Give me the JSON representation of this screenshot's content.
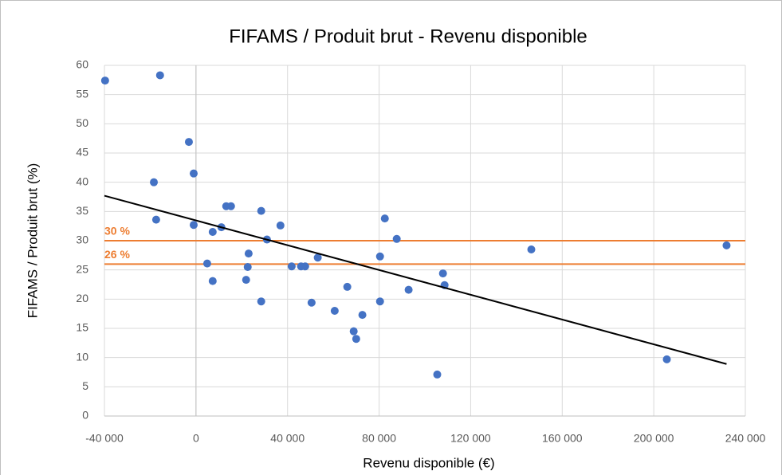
{
  "chart_data": {
    "type": "scatter",
    "title": "FIFAMS / Produit brut - Revenu disponible",
    "x_label": "Revenu disponible (€)",
    "y_label": "FIFAMS / Produit brut (%)",
    "color": "#4472c4",
    "x": [
      -39700,
      -15700,
      -3100,
      -1000,
      -18400,
      -17400,
      -1000,
      7300,
      11100,
      13200,
      15300,
      28500,
      36900,
      31000,
      23000,
      4900,
      22600,
      7300,
      21900,
      28500,
      41800,
      45900,
      47700,
      53200,
      50500,
      66100,
      60600,
      68900,
      70000,
      72700,
      80400,
      80400,
      82500,
      87700,
      92900,
      107900,
      108600,
      105400,
      146500,
      205700,
      231800
    ],
    "y": [
      57.4,
      58.3,
      46.9,
      41.5,
      40.0,
      33.6,
      32.7,
      31.5,
      32.3,
      35.9,
      35.9,
      35.1,
      32.6,
      30.2,
      27.8,
      26.1,
      25.5,
      23.1,
      23.3,
      19.6,
      25.6,
      25.6,
      25.6,
      27.1,
      19.4,
      22.1,
      18.0,
      14.5,
      13.2,
      17.3,
      27.3,
      19.6,
      33.8,
      30.3,
      21.6,
      24.4,
      22.4,
      7.1,
      28.5,
      9.7,
      29.2
    ],
    "trendline": {
      "x": [
        -40000,
        231800
      ],
      "y": [
        37.7,
        8.9
      ],
      "color": "#000000"
    },
    "reference_lines": [
      {
        "value": 30,
        "label": "30 %",
        "color": "#ed7d31"
      },
      {
        "value": 26,
        "label": "26 %",
        "color": "#ed7d31"
      }
    ],
    "xlim": [
      -40000,
      240000
    ],
    "xticks": [
      {
        "value": -40000,
        "label": "-40 000"
      },
      0,
      {
        "value": 40000,
        "label": "40 000"
      },
      {
        "value": 80000,
        "label": "80 000"
      },
      {
        "value": 120000,
        "label": "120 000"
      },
      {
        "value": 160000,
        "label": "160 000"
      },
      {
        "value": 200000,
        "label": "200 000"
      },
      {
        "value": 240000,
        "label": "240 000"
      }
    ],
    "ylim": [
      0,
      60
    ],
    "yticks": [
      0,
      5,
      10,
      15,
      20,
      25,
      30,
      35,
      40,
      45,
      50,
      55,
      60
    ],
    "grid": true
  }
}
